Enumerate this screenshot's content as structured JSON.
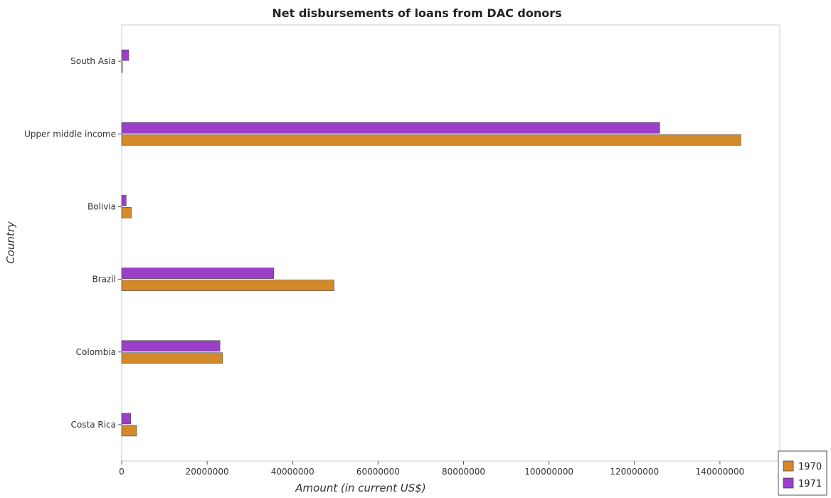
{
  "chart_data": {
    "type": "bar",
    "orientation": "horizontal",
    "title": "Net disbursements of loans from DAC donors",
    "xlabel": "Amount (in current US$)",
    "ylabel": "Country",
    "categories": [
      "South Asia",
      "Upper middle income",
      "Bolivia",
      "Brazil",
      "Colombia",
      "Costa Rica"
    ],
    "series": [
      {
        "name": "1970",
        "color": "#d4892b",
        "values": [
          120000,
          144900000,
          2250000,
          49700000,
          23600000,
          3500000
        ]
      },
      {
        "name": "1971",
        "color": "#9b3fc9",
        "values": [
          1650000,
          125900000,
          1050000,
          35600000,
          23000000,
          2100000
        ]
      }
    ],
    "xlim": [
      0,
      154000000
    ],
    "xticks": [
      0,
      20000000,
      40000000,
      60000000,
      80000000,
      100000000,
      120000000,
      140000000
    ],
    "xtick_labels": [
      "0",
      "20000000",
      "40000000",
      "60000000",
      "80000000",
      "100000000",
      "120000000",
      "140000000"
    ],
    "grid": false,
    "legend_position": "bottom-right"
  }
}
